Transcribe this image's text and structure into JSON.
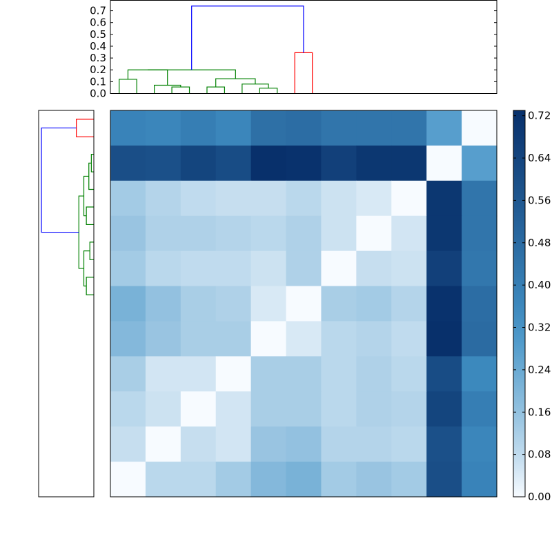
{
  "colors": {
    "cmap_low": "#f7fbff",
    "cmap_high": "#08306b",
    "link_above": "#0000ff",
    "cluster_a": "#008000",
    "cluster_b": "#ff0000"
  },
  "chart_data": [
    {
      "type": "heatmap",
      "title": "",
      "xlabel": "",
      "ylabel": "",
      "vmin": 0.0,
      "vmax": 0.73,
      "colorbar_ticks": [
        "0.00",
        "0.08",
        "0.16",
        "0.24",
        "0.32",
        "0.40",
        "0.48",
        "0.56",
        "0.64",
        "0.72"
      ],
      "colorbar_tick_values": [
        0,
        0.08,
        0.16,
        0.24,
        0.32,
        0.4,
        0.48,
        0.56,
        0.64,
        0.72
      ],
      "values": [
        [
          0.38,
          0.37,
          0.4,
          0.37,
          0.46,
          0.47,
          0.44,
          0.44,
          0.44,
          0.28,
          0.0
        ],
        [
          0.6,
          0.59,
          0.64,
          0.61,
          0.73,
          0.72,
          0.66,
          0.7,
          0.7,
          0.0,
          0.28
        ],
        [
          0.13,
          0.1,
          0.08,
          0.07,
          0.07,
          0.09,
          0.06,
          0.04,
          0.0,
          0.7,
          0.44
        ],
        [
          0.15,
          0.11,
          0.11,
          0.1,
          0.09,
          0.11,
          0.06,
          0.0,
          0.05,
          0.7,
          0.44
        ],
        [
          0.13,
          0.09,
          0.08,
          0.08,
          0.06,
          0.11,
          0.0,
          0.07,
          0.06,
          0.66,
          0.43
        ],
        [
          0.21,
          0.16,
          0.12,
          0.11,
          0.04,
          0.0,
          0.12,
          0.13,
          0.1,
          0.72,
          0.47
        ],
        [
          0.19,
          0.15,
          0.12,
          0.12,
          0.0,
          0.04,
          0.09,
          0.1,
          0.08,
          0.73,
          0.48
        ],
        [
          0.12,
          0.05,
          0.05,
          0.0,
          0.12,
          0.12,
          0.09,
          0.11,
          0.09,
          0.61,
          0.36
        ],
        [
          0.09,
          0.06,
          0.0,
          0.05,
          0.12,
          0.12,
          0.09,
          0.11,
          0.1,
          0.64,
          0.4
        ],
        [
          0.07,
          0.0,
          0.07,
          0.05,
          0.15,
          0.16,
          0.1,
          0.1,
          0.09,
          0.59,
          0.37
        ],
        [
          0.0,
          0.09,
          0.09,
          0.13,
          0.19,
          0.21,
          0.13,
          0.15,
          0.13,
          0.6,
          0.38
        ]
      ]
    },
    {
      "type": "line",
      "description": "dendrogram",
      "orientation": "top",
      "ylim": [
        0,
        0.75
      ],
      "tick_labels": [
        "0.0",
        "0.1",
        "0.2",
        "0.3",
        "0.4",
        "0.5",
        "0.6",
        "0.7"
      ],
      "tick_values": [
        0,
        0.1,
        0.2,
        0.3,
        0.4,
        0.5,
        0.6,
        0.7
      ],
      "links": [
        {
          "left": 3.0,
          "left_h": 0.0,
          "right": 4.0,
          "right_h": 0.0,
          "h": 0.055,
          "color": "cluster_a"
        },
        {
          "left": 2.0,
          "left_h": 0.0,
          "right": 3.5,
          "right_h": 0.055,
          "h": 0.07,
          "color": "cluster_a"
        },
        {
          "left": 0.0,
          "left_h": 0.0,
          "right": 1.0,
          "right_h": 0.0,
          "h": 0.12,
          "color": "cluster_a"
        },
        {
          "left": 0.5,
          "left_h": 0.12,
          "right": 2.75,
          "right_h": 0.07,
          "h": 0.2,
          "color": "cluster_a"
        },
        {
          "left": 5.0,
          "left_h": 0.0,
          "right": 6.0,
          "right_h": 0.0,
          "h": 0.055,
          "color": "cluster_a"
        },
        {
          "left": 8.0,
          "left_h": 0.0,
          "right": 9.0,
          "right_h": 0.0,
          "h": 0.045,
          "color": "cluster_a"
        },
        {
          "left": 7.0,
          "left_h": 0.0,
          "right": 8.5,
          "right_h": 0.045,
          "h": 0.08,
          "color": "cluster_a"
        },
        {
          "left": 5.5,
          "left_h": 0.055,
          "right": 7.75,
          "right_h": 0.08,
          "h": 0.125,
          "color": "cluster_a"
        },
        {
          "left": 1.625,
          "left_h": 0.2,
          "right": 6.625,
          "right_h": 0.125,
          "h": 0.2,
          "color": "cluster_a"
        },
        {
          "left": 10.0,
          "left_h": 0.0,
          "right": 11.0,
          "right_h": 0.0,
          "h": 0.345,
          "color": "cluster_b"
        },
        {
          "left": 4.125,
          "left_h": 0.2,
          "right": 10.5,
          "right_h": 0.345,
          "h": 0.74,
          "color": "link_above"
        }
      ]
    },
    {
      "type": "line",
      "description": "dendrogram",
      "orientation": "left",
      "ylim": [
        0,
        0.75
      ],
      "links": [
        {
          "a": 0.0,
          "a_h": 0.0,
          "b": 1.0,
          "b_h": 0.0,
          "h": 0.035,
          "color": "cluster_b"
        },
        {
          "a": 2.0,
          "a_h": 0.0,
          "b": 3.0,
          "b_h": 0.0,
          "h": 0.005,
          "color": "cluster_a"
        },
        {
          "a": 2.5,
          "a_h": 0.005,
          "b": 4.0,
          "b_h": 0.0,
          "h": 0.01,
          "color": "cluster_a"
        },
        {
          "a": 5.0,
          "a_h": 0.0,
          "b": 6.0,
          "b_h": 0.0,
          "h": 0.015,
          "color": "cluster_a"
        },
        {
          "a": 3.25,
          "a_h": 0.01,
          "b": 5.5,
          "b_h": 0.015,
          "h": 0.02,
          "color": "cluster_a"
        },
        {
          "a": 7.0,
          "a_h": 0.0,
          "b": 8.0,
          "b_h": 0.0,
          "h": 0.008,
          "color": "cluster_a"
        },
        {
          "a": 9.0,
          "a_h": 0.0,
          "b": 10.0,
          "b_h": 0.0,
          "h": 0.015,
          "color": "cluster_a"
        },
        {
          "a": 7.5,
          "a_h": 0.008,
          "b": 9.5,
          "b_h": 0.015,
          "h": 0.02,
          "color": "cluster_a"
        },
        {
          "a": 4.375,
          "a_h": 0.02,
          "b": 8.5,
          "b_h": 0.02,
          "h": 0.03,
          "color": "cluster_a"
        },
        {
          "a": 0.5,
          "a_h": 0.035,
          "b": 6.4375,
          "b_h": 0.03,
          "h": 0.105,
          "color": "link_above"
        }
      ]
    }
  ]
}
